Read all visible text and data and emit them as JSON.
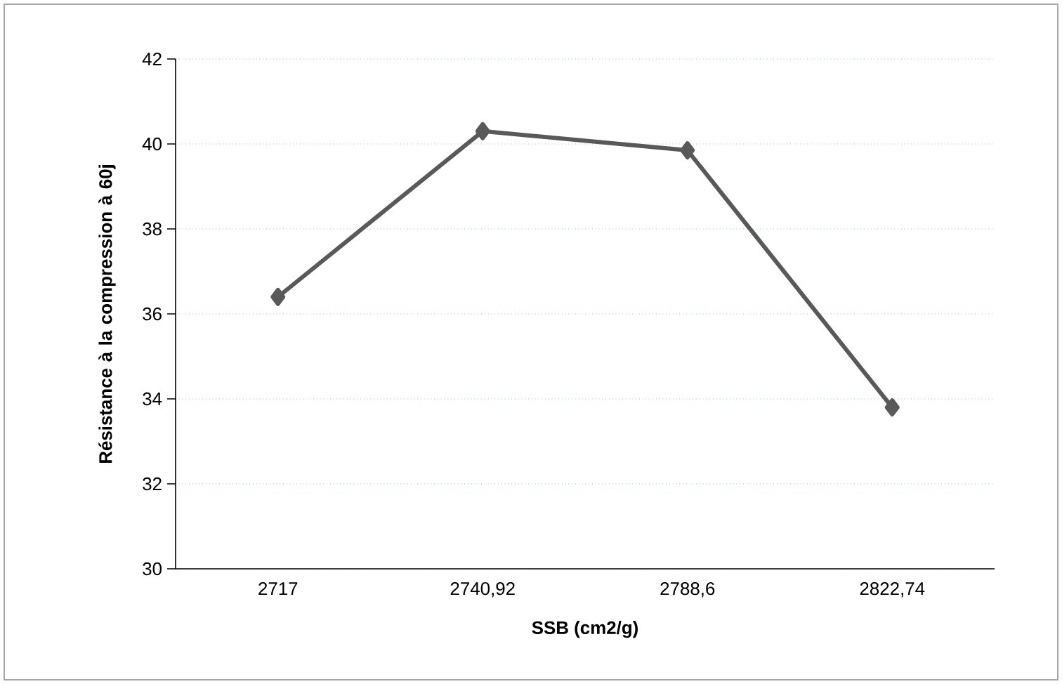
{
  "chart_data": {
    "type": "line",
    "xlabel": "SSB (cm2/g)",
    "ylabel": "Résistance à la compression à 60j",
    "categories": [
      "2717",
      "2740,92",
      "2788,6",
      "2822,74"
    ],
    "series": [
      {
        "color": "#595959",
        "values": [
          36.4,
          40.3,
          39.85,
          33.8
        ]
      }
    ],
    "ylim": [
      30,
      42
    ],
    "yticks": [
      30,
      32,
      34,
      36,
      38,
      40,
      42
    ],
    "grid": "y",
    "marker": "diamond",
    "line_style": "solid"
  }
}
